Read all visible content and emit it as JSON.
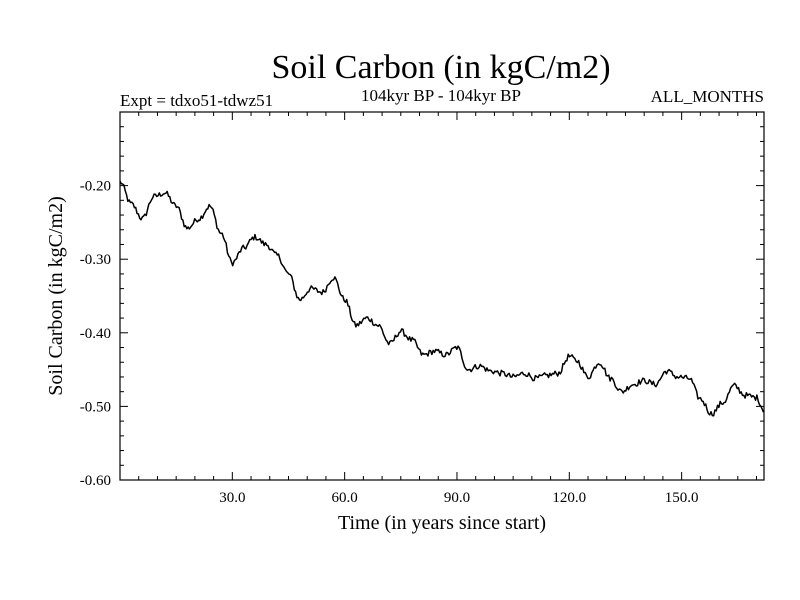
{
  "chart_data": {
    "type": "line",
    "title": "Soil Carbon (in kgC/m2)",
    "subtitle_left": "Expt = tdxo51-tdwz51",
    "subtitle_center": "104kyr BP - 104kyr BP",
    "subtitle_right": "ALL_MONTHS",
    "xlabel": "Time (in years since start)",
    "ylabel": "Soil Carbon (in kgC/m2)",
    "xlim": [
      0,
      172
    ],
    "ylim": [
      -0.6,
      -0.1
    ],
    "x_ticks": [
      30.0,
      60.0,
      90.0,
      120.0,
      150.0
    ],
    "x_tick_labels": [
      "30.0",
      "60.0",
      "90.0",
      "120.0",
      "150.0"
    ],
    "y_ticks": [
      -0.6,
      -0.5,
      -0.4,
      -0.3,
      -0.2
    ],
    "y_tick_labels": [
      "-0.60",
      "-0.50",
      "-0.40",
      "-0.30",
      "-0.20"
    ],
    "grid": false,
    "series": [
      {
        "name": "Soil Carbon",
        "x": [
          0,
          3,
          6,
          9,
          12,
          15,
          18,
          21,
          24,
          27,
          30,
          33,
          36,
          39,
          42,
          45,
          48,
          51,
          54,
          57,
          60,
          63,
          66,
          69,
          72,
          75,
          78,
          81,
          84,
          87,
          90,
          93,
          96,
          99,
          102,
          105,
          108,
          111,
          114,
          117,
          120,
          122,
          125,
          128,
          131,
          134,
          137,
          140,
          143,
          146,
          149,
          152,
          155,
          158,
          161,
          164,
          167,
          170,
          172
        ],
        "values": [
          -0.195,
          -0.225,
          -0.245,
          -0.215,
          -0.21,
          -0.228,
          -0.258,
          -0.245,
          -0.228,
          -0.265,
          -0.305,
          -0.285,
          -0.27,
          -0.28,
          -0.295,
          -0.32,
          -0.355,
          -0.34,
          -0.345,
          -0.325,
          -0.355,
          -0.39,
          -0.38,
          -0.39,
          -0.415,
          -0.398,
          -0.41,
          -0.43,
          -0.425,
          -0.43,
          -0.42,
          -0.45,
          -0.445,
          -0.452,
          -0.455,
          -0.46,
          -0.455,
          -0.462,
          -0.458,
          -0.455,
          -0.432,
          -0.438,
          -0.46,
          -0.44,
          -0.462,
          -0.48,
          -0.47,
          -0.465,
          -0.47,
          -0.452,
          -0.46,
          -0.462,
          -0.49,
          -0.51,
          -0.495,
          -0.472,
          -0.485,
          -0.488,
          -0.505
        ]
      }
    ]
  }
}
